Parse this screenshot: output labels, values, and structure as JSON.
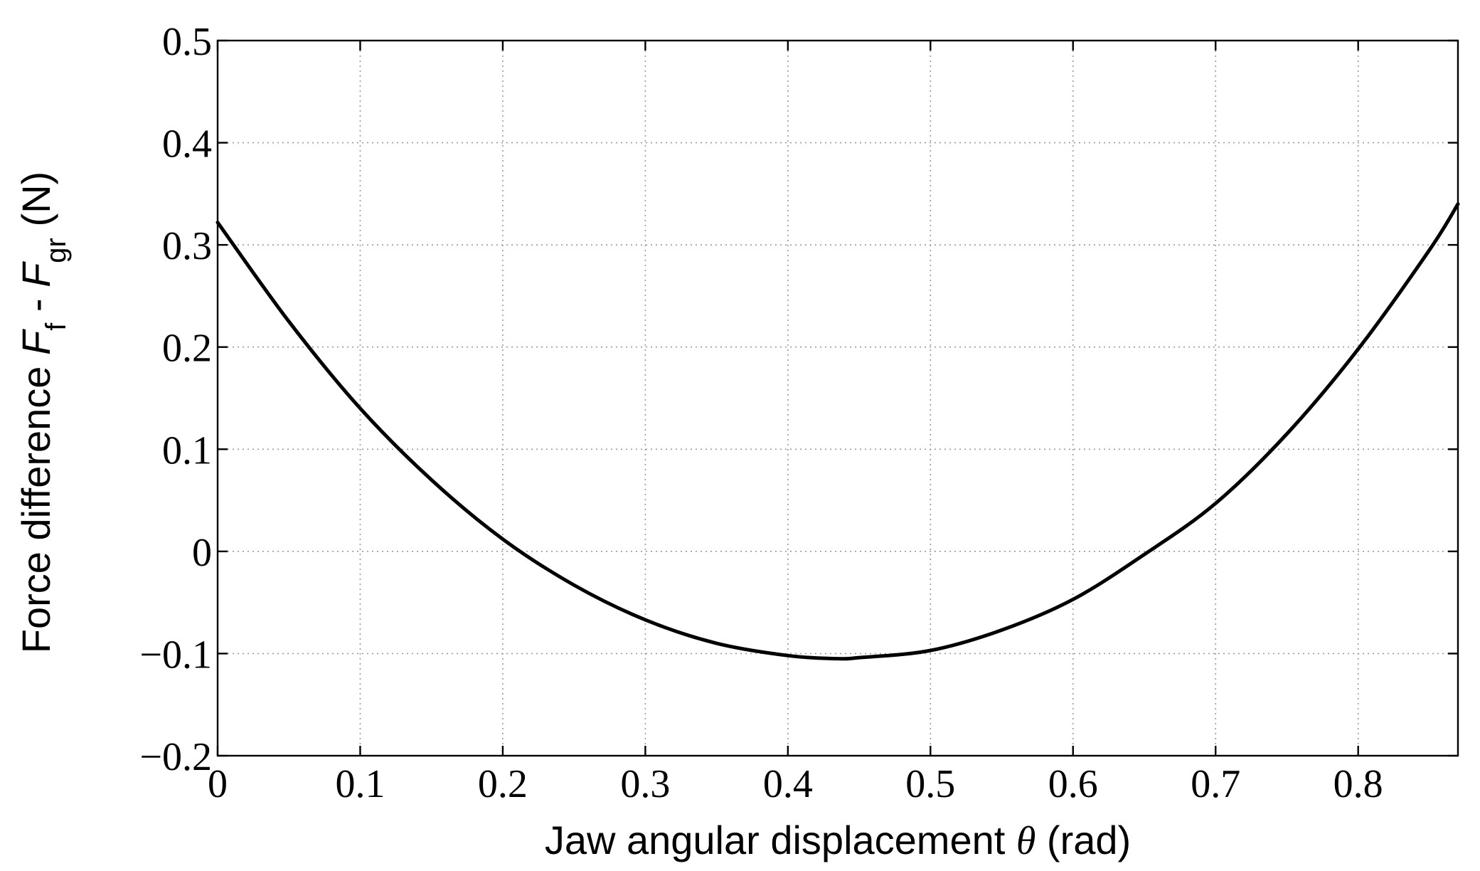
{
  "chart_data": {
    "type": "line",
    "title": "",
    "xlabel": {
      "main": "Jaw angular displacement ",
      "symbol": "θ",
      "unit": " (rad)"
    },
    "ylabel": {
      "prefix": "Force difference ",
      "f1": "F",
      "f1_sub": "f",
      "mid": " - ",
      "f2": "F",
      "f2_sub": "gr",
      "unit": " (N)"
    },
    "xlim": [
      0,
      0.87
    ],
    "ylim": [
      -0.2,
      0.5
    ],
    "grid": true,
    "x_ticks": [
      0,
      0.1,
      0.2,
      0.3,
      0.4,
      0.5,
      0.6,
      0.7,
      0.8
    ],
    "x_tick_labels": [
      "0",
      "0.1",
      "0.2",
      "0.3",
      "0.4",
      "0.5",
      "0.6",
      "0.7",
      "0.8"
    ],
    "y_ticks": [
      -0.2,
      -0.1,
      0,
      0.1,
      0.2,
      0.3,
      0.4,
      0.5
    ],
    "y_tick_labels": [
      "−0.2",
      "−0.1",
      "0",
      "0.1",
      "0.2",
      "0.3",
      "0.4",
      "0.5"
    ],
    "series": [
      {
        "color": "#000000",
        "x": [
          0,
          0.05,
          0.1,
          0.15,
          0.2,
          0.25,
          0.3,
          0.35,
          0.4,
          0.435,
          0.45,
          0.5,
          0.55,
          0.6,
          0.65,
          0.7,
          0.75,
          0.8,
          0.85,
          0.87
        ],
        "y": [
          0.322,
          0.225,
          0.14,
          0.07,
          0.012,
          -0.033,
          -0.067,
          -0.09,
          -0.102,
          -0.105,
          -0.104,
          -0.097,
          -0.077,
          -0.047,
          -0.003,
          0.047,
          0.115,
          0.198,
          0.295,
          0.34
        ]
      }
    ]
  }
}
